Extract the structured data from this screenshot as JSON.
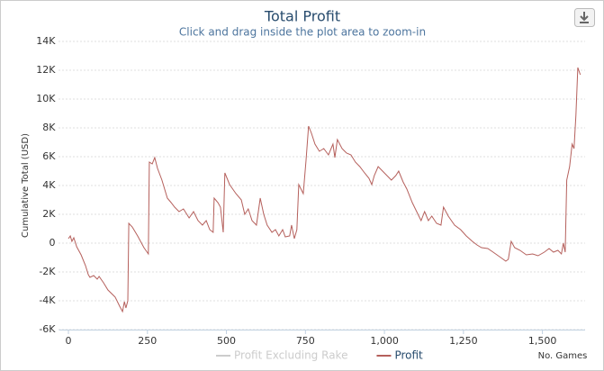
{
  "chart_data": {
    "type": "line",
    "title": "Total Profit",
    "subtitle": "Click and drag inside the plot area to zoom-in",
    "y_label": "Cumulative Total (USD)",
    "x_label": "No. Games",
    "grid": true,
    "xlim": [
      -30,
      1635
    ],
    "xticks": [
      0,
      250,
      500,
      750,
      {
        "value": 1000,
        "label": "1,000"
      },
      {
        "value": 1250,
        "label": "1,250"
      },
      {
        "value": 1500,
        "label": "1,500"
      }
    ],
    "ylim": [
      -6000,
      14000
    ],
    "yticks": [
      {
        "value": -6000,
        "label": "-6K"
      },
      {
        "value": -4000,
        "label": "-4K"
      },
      {
        "value": -2000,
        "label": "-2K"
      },
      0,
      {
        "value": 2000,
        "label": "2K"
      },
      {
        "value": 4000,
        "label": "4K"
      },
      {
        "value": 6000,
        "label": "6K"
      },
      {
        "value": 8000,
        "label": "8K"
      },
      {
        "value": 10000,
        "label": "10K"
      },
      {
        "value": 12000,
        "label": "12K"
      },
      {
        "value": 14000,
        "label": "14K"
      }
    ],
    "x": [
      0,
      6,
      11,
      17,
      26,
      40,
      54,
      63,
      68,
      80,
      91,
      97,
      111,
      125,
      148,
      162,
      171,
      177,
      182,
      188,
      191,
      202,
      219,
      239,
      253,
      256,
      265,
      273,
      282,
      296,
      313,
      325,
      336,
      350,
      364,
      382,
      396,
      410,
      424,
      436,
      447,
      458,
      461,
      473,
      481,
      490,
      495,
      510,
      530,
      547,
      558,
      569,
      581,
      595,
      607,
      618,
      629,
      644,
      655,
      666,
      678,
      686,
      700,
      706,
      715,
      723,
      729,
      743,
      752,
      760,
      769,
      780,
      794,
      808,
      823,
      837,
      843,
      851,
      866,
      880,
      894,
      908,
      922,
      937,
      951,
      960,
      968,
      980,
      994,
      1008,
      1022,
      1036,
      1045,
      1059,
      1071,
      1088,
      1102,
      1116,
      1127,
      1139,
      1150,
      1165,
      1179,
      1187,
      1202,
      1222,
      1241,
      1259,
      1278,
      1293,
      1307,
      1327,
      1344,
      1364,
      1384,
      1392,
      1401,
      1412,
      1429,
      1449,
      1469,
      1486,
      1506,
      1521,
      1535,
      1549,
      1560,
      1566,
      1572,
      1577,
      1586,
      1594,
      1600,
      1606,
      1612,
      1620
    ],
    "series": [
      {
        "name": "Profit Excluding Rake",
        "color": "#cccccc",
        "visible": false
      },
      {
        "name": "Profit",
        "color": "#b5605c",
        "visible": true,
        "values": [
          312,
          500,
          125,
          375,
          -250,
          -812,
          -1562,
          -2187,
          -2375,
          -2250,
          -2500,
          -2312,
          -2750,
          -3250,
          -3750,
          -4375,
          -4750,
          -4062,
          -4500,
          -4000,
          1375,
          1125,
          500,
          -312,
          -750,
          5625,
          5500,
          5937,
          5187,
          4375,
          3125,
          2812,
          2500,
          2187,
          2375,
          1750,
          2187,
          1562,
          1250,
          1562,
          937,
          750,
          3125,
          2812,
          2500,
          750,
          4875,
          4062,
          3437,
          3000,
          2000,
          2375,
          1562,
          1250,
          3125,
          2000,
          1250,
          750,
          937,
          500,
          937,
          437,
          500,
          1250,
          312,
          937,
          4062,
          3437,
          5750,
          8125,
          7625,
          6875,
          6375,
          6562,
          6125,
          6875,
          5937,
          7187,
          6562,
          6250,
          6125,
          5625,
          5312,
          4875,
          4500,
          4062,
          4687,
          5312,
          5000,
          4687,
          4375,
          4687,
          5000,
          4250,
          3750,
          2812,
          2187,
          1562,
          2187,
          1562,
          1875,
          1375,
          1250,
          2500,
          1875,
          1250,
          937,
          500,
          125,
          -125,
          -312,
          -375,
          -625,
          -937,
          -1250,
          -1125,
          125,
          -312,
          -500,
          -812,
          -750,
          -875,
          -625,
          -375,
          -625,
          -500,
          -750,
          0,
          -625,
          4375,
          5312,
          6875,
          6562,
          8875,
          12187,
          11687
        ]
      }
    ]
  }
}
